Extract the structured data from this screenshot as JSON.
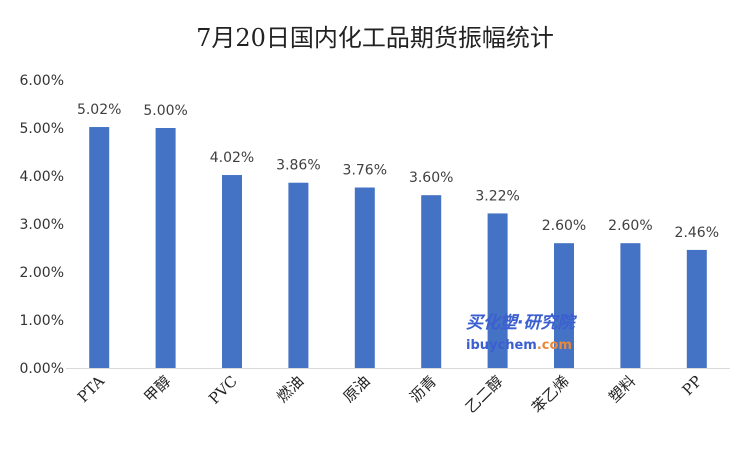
{
  "chart_data": {
    "type": "bar",
    "title": "7月20日国内化工品期货振幅统计",
    "xlabel": "",
    "ylabel": "",
    "categories": [
      "PTA",
      "甲醇",
      "PVC",
      "燃油",
      "原油",
      "沥青",
      "乙二醇",
      "苯乙烯",
      "塑料",
      "PP"
    ],
    "values": [
      5.02,
      5.0,
      4.02,
      3.86,
      3.76,
      3.6,
      3.22,
      2.6,
      2.6,
      2.46
    ],
    "data_labels": [
      "5.02%",
      "5.00%",
      "4.02%",
      "3.86%",
      "3.76%",
      "3.60%",
      "3.22%",
      "2.60%",
      "2.60%",
      "2.46%"
    ],
    "yticks": [
      "0.00%",
      "1.00%",
      "2.00%",
      "3.00%",
      "4.00%",
      "5.00%",
      "6.00%"
    ],
    "ylim": [
      0,
      6
    ],
    "grid": false,
    "legend": "none",
    "bar_color": "#4472c4"
  },
  "watermark": {
    "line1": "买化塑·研究院",
    "line2_main": "ibuychem",
    "line2_domain": ".com"
  }
}
